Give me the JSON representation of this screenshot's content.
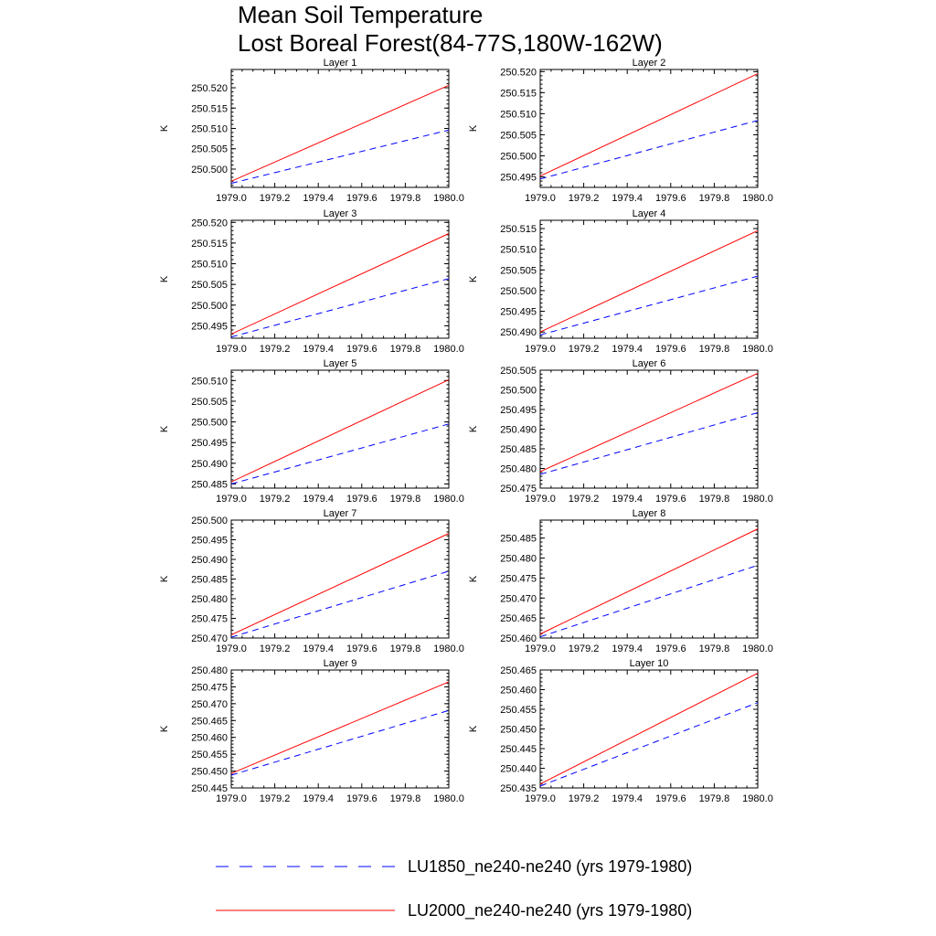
{
  "figure": {
    "title": [
      "Mean Soil Temperature",
      "Lost Boreal Forest(84-77S,180W-162W)"
    ]
  },
  "legend": {
    "position": "bottom",
    "entries": [
      {
        "label": "LU1850_ne240-ne240 (yrs 1979-1980)",
        "color": "#0000ff",
        "style": "dashed"
      },
      {
        "label": "LU2000_ne240-ne240 (yrs 1979-1980)",
        "color": "#ff0000",
        "style": "solid"
      }
    ]
  },
  "chart_data": [
    {
      "type": "line",
      "title": "Layer 1",
      "ylabel": "K",
      "xlim": [
        1979.0,
        1980.0
      ],
      "ylim": [
        250.4955,
        250.5245
      ],
      "xticks": [
        "1979.0",
        "1979.2",
        "1979.4",
        "1979.6",
        "1979.8",
        "1980.0"
      ],
      "yticks": [
        "250.500",
        "250.505",
        "250.510",
        "250.515",
        "250.520"
      ],
      "x": [
        1979.0,
        1980.0
      ],
      "series": [
        {
          "name": "LU1850_ne240-ne240 (yrs 1979-1980)",
          "values": [
            250.4965,
            250.5096
          ]
        },
        {
          "name": "LU2000_ne240-ne240 (yrs 1979-1980)",
          "values": [
            250.497,
            250.5206
          ]
        }
      ]
    },
    {
      "type": "line",
      "title": "Layer 2",
      "ylabel": "K",
      "xlim": [
        1979.0,
        1980.0
      ],
      "ylim": [
        250.4925,
        250.5205
      ],
      "xticks": [
        "1979.0",
        "1979.2",
        "1979.4",
        "1979.6",
        "1979.8",
        "1980.0"
      ],
      "yticks": [
        "250.495",
        "250.500",
        "250.505",
        "250.510",
        "250.515",
        "250.520"
      ],
      "x": [
        1979.0,
        1980.0
      ],
      "series": [
        {
          "name": "LU1850_ne240-ne240 (yrs 1979-1980)",
          "values": [
            250.4945,
            250.5084
          ]
        },
        {
          "name": "LU2000_ne240-ne240 (yrs 1979-1980)",
          "values": [
            250.4952,
            250.5195
          ]
        }
      ]
    },
    {
      "type": "line",
      "title": "Layer 3",
      "ylabel": "K",
      "xlim": [
        1979.0,
        1980.0
      ],
      "ylim": [
        250.492,
        250.5205
      ],
      "xticks": [
        "1979.0",
        "1979.2",
        "1979.4",
        "1979.6",
        "1979.8",
        "1980.0"
      ],
      "yticks": [
        "250.495",
        "250.500",
        "250.505",
        "250.510",
        "250.515",
        "250.520"
      ],
      "x": [
        1979.0,
        1980.0
      ],
      "series": [
        {
          "name": "LU1850_ne240-ne240 (yrs 1979-1980)",
          "values": [
            250.4923,
            250.5064
          ]
        },
        {
          "name": "LU2000_ne240-ne240 (yrs 1979-1980)",
          "values": [
            250.493,
            250.5173
          ]
        }
      ]
    },
    {
      "type": "line",
      "title": "Layer 4",
      "ylabel": "K",
      "xlim": [
        1979.0,
        1980.0
      ],
      "ylim": [
        250.4885,
        250.517
      ],
      "xticks": [
        "1979.0",
        "1979.2",
        "1979.4",
        "1979.6",
        "1979.8",
        "1980.0"
      ],
      "yticks": [
        "250.490",
        "250.495",
        "250.500",
        "250.505",
        "250.510",
        "250.515"
      ],
      "x": [
        1979.0,
        1980.0
      ],
      "series": [
        {
          "name": "LU1850_ne240-ne240 (yrs 1979-1980)",
          "values": [
            250.4893,
            250.5035
          ]
        },
        {
          "name": "LU2000_ne240-ne240 (yrs 1979-1980)",
          "values": [
            250.49,
            250.5145
          ]
        }
      ]
    },
    {
      "type": "line",
      "title": "Layer 5",
      "ylabel": "K",
      "xlim": [
        1979.0,
        1980.0
      ],
      "ylim": [
        250.484,
        250.5125
      ],
      "xticks": [
        "1979.0",
        "1979.2",
        "1979.4",
        "1979.6",
        "1979.8",
        "1980.0"
      ],
      "yticks": [
        "250.485",
        "250.490",
        "250.495",
        "250.500",
        "250.505",
        "250.510"
      ],
      "x": [
        1979.0,
        1980.0
      ],
      "series": [
        {
          "name": "LU1850_ne240-ne240 (yrs 1979-1980)",
          "values": [
            250.485,
            250.4995
          ]
        },
        {
          "name": "LU2000_ne240-ne240 (yrs 1979-1980)",
          "values": [
            250.4855,
            250.5102
          ]
        }
      ]
    },
    {
      "type": "line",
      "title": "Layer 6",
      "ylabel": "K",
      "xlim": [
        1979.0,
        1980.0
      ],
      "ylim": [
        250.475,
        250.505
      ],
      "xticks": [
        "1979.0",
        "1979.2",
        "1979.4",
        "1979.6",
        "1979.8",
        "1980.0"
      ],
      "yticks": [
        "250.475",
        "250.480",
        "250.485",
        "250.490",
        "250.495",
        "250.500",
        "250.505"
      ],
      "x": [
        1979.0,
        1980.0
      ],
      "series": [
        {
          "name": "LU1850_ne240-ne240 (yrs 1979-1980)",
          "values": [
            250.4785,
            250.4942
          ]
        },
        {
          "name": "LU2000_ne240-ne240 (yrs 1979-1980)",
          "values": [
            250.4792,
            250.5042
          ]
        }
      ]
    },
    {
      "type": "line",
      "title": "Layer 7",
      "ylabel": "K",
      "xlim": [
        1979.0,
        1980.0
      ],
      "ylim": [
        250.47,
        250.5
      ],
      "xticks": [
        "1979.0",
        "1979.2",
        "1979.4",
        "1979.6",
        "1979.8",
        "1980.0"
      ],
      "yticks": [
        "250.470",
        "250.475",
        "250.480",
        "250.485",
        "250.490",
        "250.495",
        "250.500"
      ],
      "x": [
        1979.0,
        1980.0
      ],
      "series": [
        {
          "name": "LU1850_ne240-ne240 (yrs 1979-1980)",
          "values": [
            250.4702,
            250.487
          ]
        },
        {
          "name": "LU2000_ne240-ne240 (yrs 1979-1980)",
          "values": [
            250.4708,
            250.4966
          ]
        }
      ]
    },
    {
      "type": "line",
      "title": "Layer 8",
      "ylabel": "K",
      "xlim": [
        1979.0,
        1980.0
      ],
      "ylim": [
        250.46,
        250.4895
      ],
      "xticks": [
        "1979.0",
        "1979.2",
        "1979.4",
        "1979.6",
        "1979.8",
        "1980.0"
      ],
      "yticks": [
        "250.460",
        "250.465",
        "250.470",
        "250.475",
        "250.480",
        "250.485"
      ],
      "x": [
        1979.0,
        1980.0
      ],
      "series": [
        {
          "name": "LU1850_ne240-ne240 (yrs 1979-1980)",
          "values": [
            250.4603,
            250.4782
          ]
        },
        {
          "name": "LU2000_ne240-ne240 (yrs 1979-1980)",
          "values": [
            250.461,
            250.4873
          ]
        }
      ]
    },
    {
      "type": "line",
      "title": "Layer 9",
      "ylabel": "K",
      "xlim": [
        1979.0,
        1980.0
      ],
      "ylim": [
        250.445,
        250.48
      ],
      "xticks": [
        "1979.0",
        "1979.2",
        "1979.4",
        "1979.6",
        "1979.8",
        "1980.0"
      ],
      "yticks": [
        "250.445",
        "250.450",
        "250.455",
        "250.460",
        "250.465",
        "250.470",
        "250.475",
        "250.480"
      ],
      "x": [
        1979.0,
        1980.0
      ],
      "series": [
        {
          "name": "LU1850_ne240-ne240 (yrs 1979-1980)",
          "values": [
            250.4488,
            250.468
          ]
        },
        {
          "name": "LU2000_ne240-ne240 (yrs 1979-1980)",
          "values": [
            250.4493,
            250.4765
          ]
        }
      ]
    },
    {
      "type": "line",
      "title": "Layer 10",
      "ylabel": "K",
      "xlim": [
        1979.0,
        1980.0
      ],
      "ylim": [
        250.435,
        250.465
      ],
      "xticks": [
        "1979.0",
        "1979.2",
        "1979.4",
        "1979.6",
        "1979.8",
        "1980.0"
      ],
      "yticks": [
        "250.435",
        "250.440",
        "250.445",
        "250.450",
        "250.455",
        "250.460",
        "250.465"
      ],
      "x": [
        1979.0,
        1980.0
      ],
      "series": [
        {
          "name": "LU1850_ne240-ne240 (yrs 1979-1980)",
          "values": [
            250.4355,
            250.4567
          ]
        },
        {
          "name": "LU2000_ne240-ne240 (yrs 1979-1980)",
          "values": [
            250.436,
            250.4642
          ]
        }
      ]
    }
  ]
}
